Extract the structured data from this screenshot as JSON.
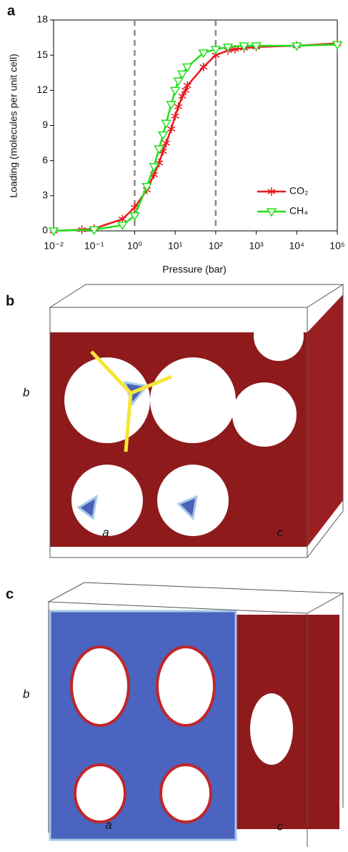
{
  "panels": {
    "a": "a",
    "b": "b",
    "c": "c"
  },
  "chart_data": {
    "type": "line",
    "xlabel": "Pressure (bar)",
    "ylabel": "Loading (molecules per unit cell)",
    "xscale": "log",
    "xlim": [
      0.01,
      100000
    ],
    "xticks": [
      {
        "value": 0.01,
        "label": "10⁻²"
      },
      {
        "value": 0.1,
        "label": "10⁻¹"
      },
      {
        "value": 1,
        "label": "10⁰"
      },
      {
        "value": 10,
        "label": "10¹"
      },
      {
        "value": 100,
        "label": "10²"
      },
      {
        "value": 1000,
        "label": "10³"
      },
      {
        "value": 10000,
        "label": "10⁴"
      },
      {
        "value": 100000,
        "label": "10⁵"
      }
    ],
    "ylim": [
      0,
      18
    ],
    "yticks": [
      0,
      3,
      6,
      9,
      12,
      15,
      18
    ],
    "grid": false,
    "legend": "lower right",
    "vlines": [
      1,
      100
    ],
    "series": [
      {
        "name": "CO₂",
        "color": "#e8191e",
        "marker": "asterisk",
        "x": [
          0.01,
          0.05,
          0.1,
          0.5,
          1,
          2,
          3,
          4,
          5,
          6,
          8,
          10,
          12,
          15,
          18,
          20,
          50,
          100,
          200,
          300,
          500,
          1000,
          10000,
          100000
        ],
        "values": [
          0,
          0.1,
          0.2,
          1,
          2,
          3.5,
          4.8,
          5.8,
          6.8,
          7.5,
          8.7,
          9.8,
          10.6,
          11.5,
          12,
          12.4,
          14,
          15,
          15.4,
          15.5,
          15.6,
          15.7,
          15.8,
          16
        ]
      },
      {
        "name": "CH₄",
        "color": "#22e01c",
        "marker": "triangle",
        "x": [
          0.01,
          0.1,
          0.5,
          1,
          2,
          3,
          4,
          5,
          6,
          8,
          10,
          12,
          15,
          20,
          50,
          100,
          200,
          500,
          1000,
          10000,
          100000
        ],
        "values": [
          0,
          0.1,
          0.5,
          1.3,
          3.8,
          5.5,
          7,
          8.2,
          9.2,
          10.8,
          12,
          12.8,
          13.4,
          14,
          15.2,
          15.5,
          15.7,
          15.8,
          15.8,
          15.8,
          15.9
        ]
      }
    ]
  },
  "panel_b_axes": {
    "b": "b",
    "a": "a",
    "c": "c"
  },
  "panel_c_axes": {
    "b": "b",
    "a": "a",
    "c": "c"
  }
}
